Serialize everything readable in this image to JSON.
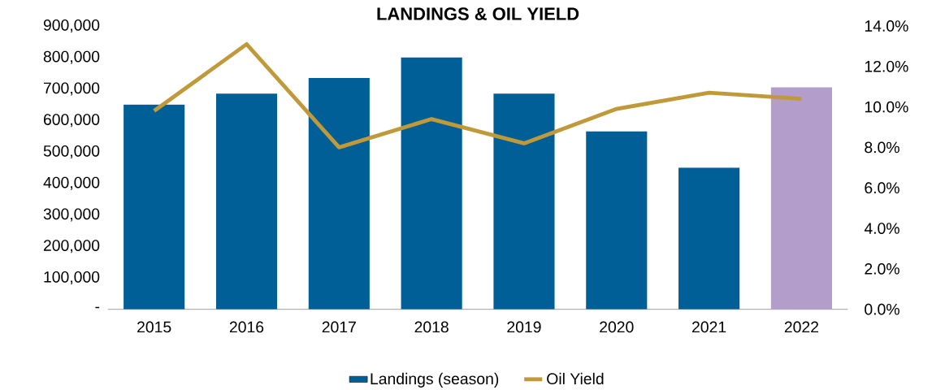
{
  "chart_data": {
    "type": "bar",
    "title": "LANDINGS & OIL YIELD",
    "categories": [
      "2015",
      "2016",
      "2017",
      "2018",
      "2019",
      "2020",
      "2021",
      "2022"
    ],
    "series": [
      {
        "name": "Landings (season)",
        "color": "#005f96",
        "colors": [
          "#005f96",
          "#005f96",
          "#005f96",
          "#005f96",
          "#005f96",
          "#005f96",
          "#005f96",
          "#b39dcb"
        ],
        "values": [
          650000,
          685000,
          735000,
          800000,
          685000,
          565000,
          450000,
          705000
        ]
      },
      {
        "name": "Oil Yield",
        "type": "line",
        "axis": "y2",
        "color": "#c09a3a",
        "values": [
          9.8,
          13.1,
          8.0,
          9.4,
          8.2,
          9.9,
          10.7,
          10.4
        ]
      }
    ],
    "ylim": [
      0,
      900000
    ],
    "yticks": [
      {
        "value": 0,
        "label": "-"
      },
      {
        "value": 100000,
        "label": "100,000"
      },
      {
        "value": 200000,
        "label": "200,000"
      },
      {
        "value": 300000,
        "label": "300,000"
      },
      {
        "value": 400000,
        "label": "400,000"
      },
      {
        "value": 500000,
        "label": "500,000"
      },
      {
        "value": 600000,
        "label": "600,000"
      },
      {
        "value": 700000,
        "label": "700,000"
      },
      {
        "value": 800000,
        "label": "800,000"
      },
      {
        "value": 900000,
        "label": "900,000"
      }
    ],
    "y2lim": [
      0,
      14
    ],
    "y2ticks": [
      {
        "value": 0,
        "label": "0.0%"
      },
      {
        "value": 2,
        "label": "2.0%"
      },
      {
        "value": 4,
        "label": "4.0%"
      },
      {
        "value": 6,
        "label": "6.0%"
      },
      {
        "value": 8,
        "label": "8.0%"
      },
      {
        "value": 10,
        "label": "10.0%"
      },
      {
        "value": 12,
        "label": "12.0%"
      },
      {
        "value": 14,
        "label": "14.0%"
      }
    ],
    "legend": "bottom"
  }
}
